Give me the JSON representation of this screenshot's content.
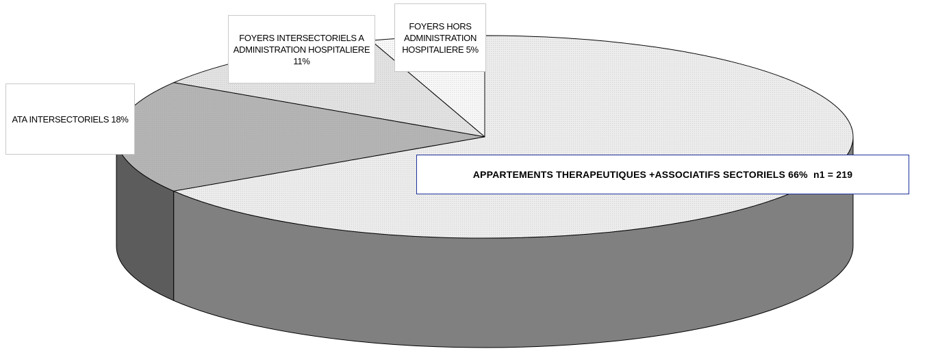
{
  "chart_data": {
    "type": "pie3d",
    "categories": [
      "APPARTEMENTS THERAPEUTIQUES +ASSOCIATIFS SECTORIELS",
      "ATA INTERSECTORIELS",
      "FOYERS INTERSECTORIELS A ADMINISTRATION HOSPITALIERE",
      "FOYERS HORS ADMINISTRATION HOSPITALIERE"
    ],
    "values": [
      66,
      18,
      11,
      5
    ],
    "value_labels": [
      "66%",
      "18%",
      "11%",
      "5%"
    ],
    "colors": [
      "#ececec",
      "#b4b4b4",
      "#e2e2e2",
      "#f7f7f7"
    ],
    "side_colors": [
      "#808080",
      "#5c5c5c",
      "#a8a8a8",
      "#c8c8c8"
    ],
    "annotation": "n1 = 219"
  }
}
